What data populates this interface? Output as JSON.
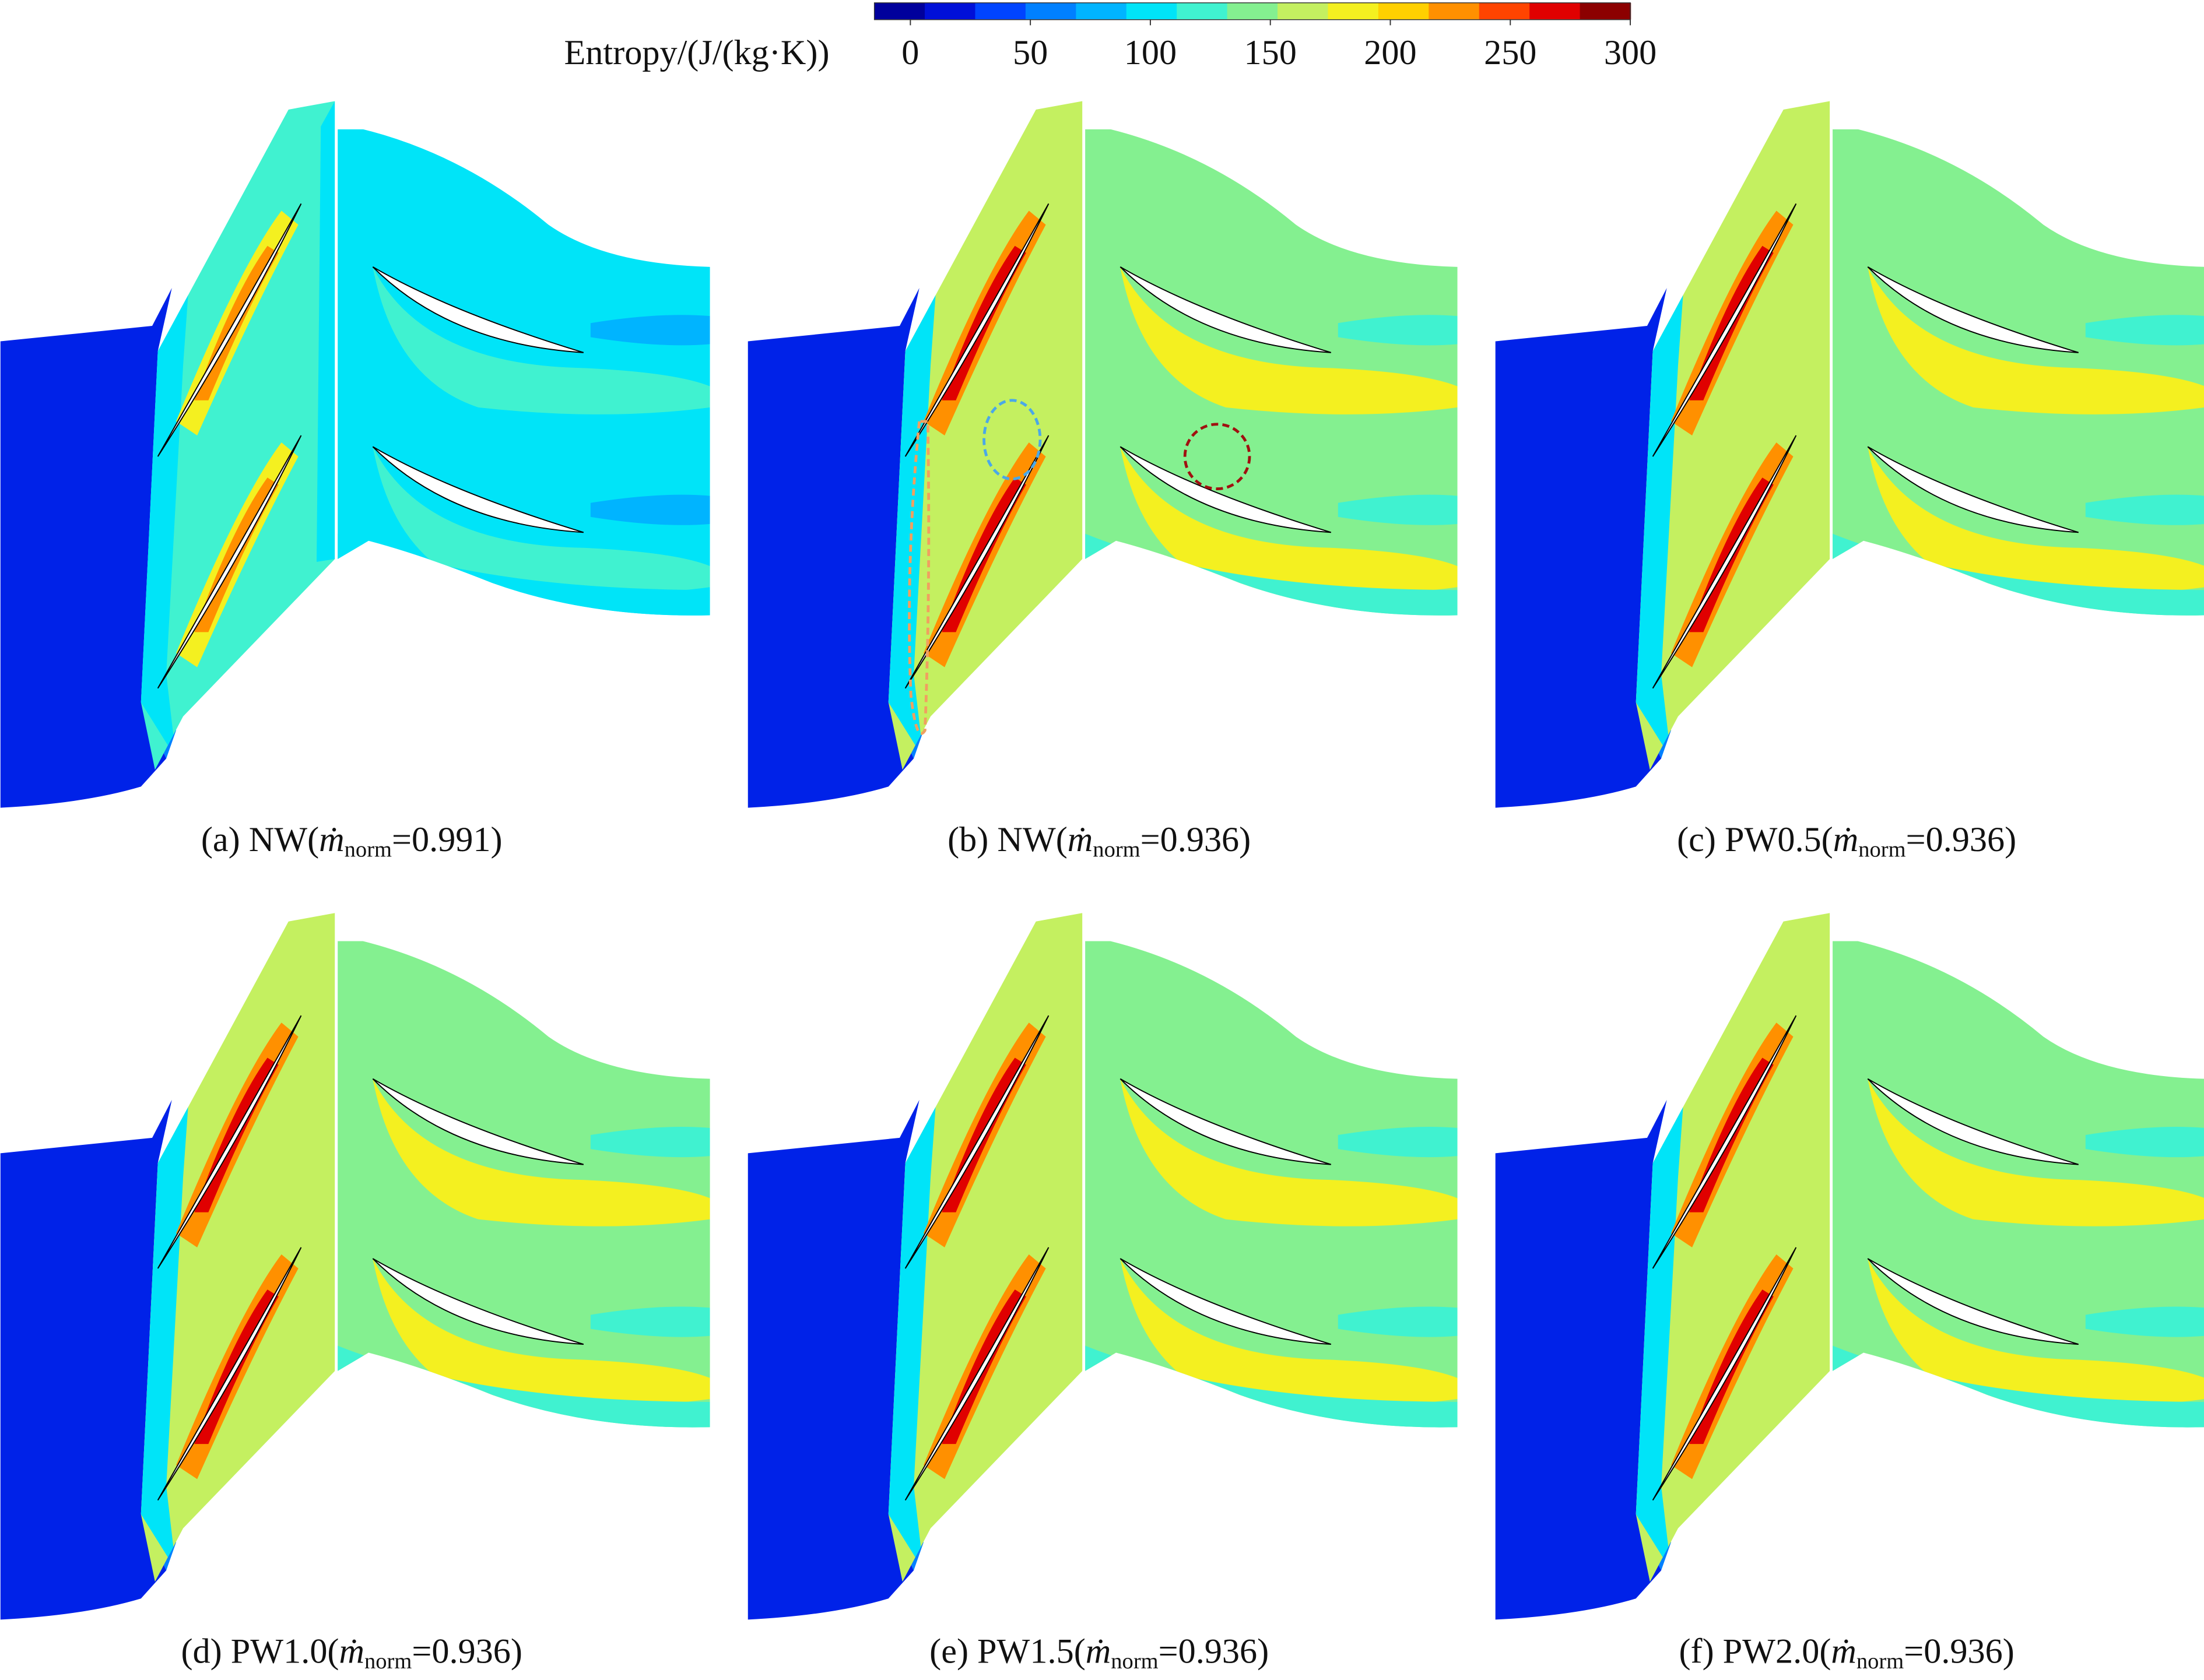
{
  "colorbar": {
    "label": "Entropy/(J/(kg·K))",
    "range": [
      -15,
      300
    ],
    "ticks": [
      0,
      50,
      100,
      150,
      200,
      250,
      300
    ],
    "colors": [
      "#00009c",
      "#0010d8",
      "#0044ff",
      "#0080ff",
      "#00b4ff",
      "#00e4f8",
      "#40f2d0",
      "#84f090",
      "#c4f060",
      "#f4f020",
      "#ffd000",
      "#ff9000",
      "#ff4400",
      "#e00000",
      "#8c0000"
    ]
  },
  "panels": [
    {
      "prefix": "(a) NW(",
      "symbol": "ṁ",
      "sub": "norm",
      "suffix": "=0.991)"
    },
    {
      "prefix": "(b) NW(",
      "symbol": "ṁ",
      "sub": "norm",
      "suffix": "=0.936)"
    },
    {
      "prefix": "(c) PW0.5(",
      "symbol": "ṁ",
      "sub": "norm",
      "suffix": "=0.936)"
    },
    {
      "prefix": "(d) PW1.0(",
      "symbol": "ṁ",
      "sub": "norm",
      "suffix": "=0.936)"
    },
    {
      "prefix": "(e) PW1.5(",
      "symbol": "ṁ",
      "sub": "norm",
      "suffix": "=0.936)"
    },
    {
      "prefix": "(f) PW2.0(",
      "symbol": "ṁ",
      "sub": "norm",
      "suffix": "=0.936)"
    }
  ]
}
